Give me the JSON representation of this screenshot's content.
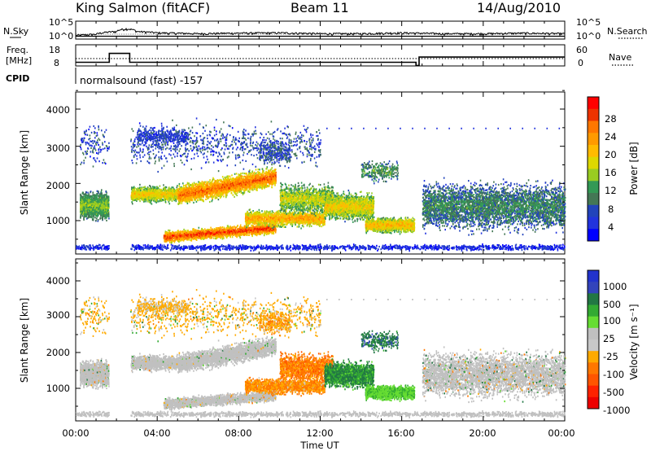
{
  "header": {
    "station": "King Salmon (fitACF)",
    "beam": "Beam 11",
    "date": "14/Aug/2010"
  },
  "noise_panel": {
    "left_label": "N.Sky",
    "left_ticks": [
      "10^5",
      "10^0"
    ],
    "right_ticks": [
      "10^5",
      "10^0"
    ],
    "right_label": "N.Search"
  },
  "freq_panel": {
    "left_label_1": "Freq.",
    "left_label_2": "[MHz]",
    "left_ticks": [
      "18",
      "8"
    ],
    "right_ticks": [
      "60",
      "0"
    ],
    "right_label": "Nave"
  },
  "cpid": {
    "label": "CPID",
    "program": "normalsound (fast) -157"
  },
  "power_panel": {
    "ylabel": "Slant Range [km]",
    "yticks": [
      "4000",
      "3000",
      "2000",
      "1000"
    ],
    "colorbar_label": "Power [dB]",
    "colorbar_ticks": [
      "28",
      "24",
      "20",
      "16",
      "12",
      "8",
      "4"
    ],
    "colorbar_colors": [
      "#ff0000",
      "#ee3300",
      "#ff7700",
      "#ff9a00",
      "#ffbb00",
      "#ddd800",
      "#99cc22",
      "#339955",
      "#447755",
      "#2244bb",
      "#2233dd",
      "#0000ff"
    ]
  },
  "velocity_panel": {
    "ylabel": "Slant Range [km]",
    "yticks": [
      "4000",
      "3000",
      "2000",
      "1000"
    ],
    "colorbar_label": "Velocity [m s⁻¹]",
    "colorbar_ticks": [
      "1000",
      "500",
      "100",
      "25",
      "-25",
      "-100",
      "-500",
      "-1000"
    ],
    "colorbar_colors": [
      "#2233cc",
      "#3344bb",
      "#227744",
      "#33aa33",
      "#66dd33",
      "#c0c0c0",
      "#c8c8c8",
      "#ffaa00",
      "#ff7700",
      "#ff5500",
      "#ff2200",
      "#ee0000"
    ]
  },
  "time_axis": {
    "label": "Time UT",
    "ticks": [
      "00:00",
      "04:00",
      "08:00",
      "12:00",
      "16:00",
      "20:00",
      "00:00"
    ]
  },
  "chart_data": [
    {
      "type": "line",
      "title": "N.Sky / N.Search",
      "x_unit": "hours UT",
      "xlim": [
        0,
        24
      ],
      "yscale": "log",
      "series": [
        {
          "name": "N.Sky",
          "x": [
            0,
            1,
            2,
            2.5,
            3,
            4,
            6,
            8,
            10,
            12,
            14,
            16,
            18,
            20,
            22,
            24
          ],
          "y": [
            1,
            3,
            30,
            300,
            30,
            10,
            5,
            8,
            10,
            5,
            5,
            10,
            5,
            5,
            8,
            5
          ]
        }
      ]
    },
    {
      "type": "line",
      "title": "Freq / Nave",
      "x_unit": "hours UT",
      "xlim": [
        0,
        24
      ],
      "series": [
        {
          "name": "Freq. [MHz]",
          "x": [
            0,
            1.65,
            1.65,
            2.65,
            2.65,
            16.7,
            16.7,
            16.85,
            16.85,
            24
          ],
          "y": [
            10.8,
            10.8,
            17.6,
            17.6,
            10.8,
            10.8,
            8.4,
            8.4,
            14.8,
            14.8
          ]
        },
        {
          "name": "Nave",
          "x": [
            0,
            24
          ],
          "y": [
            34,
            34
          ]
        }
      ]
    },
    {
      "type": "heatmap",
      "title": "Power [dB]",
      "x_unit": "hours UT",
      "y_unit": "km",
      "xlim": [
        0,
        24
      ],
      "ylim": [
        180,
        4600
      ],
      "color_range": [
        0,
        30
      ],
      "features": [
        {
          "x": [
            0.3,
            1.6
          ],
          "y": [
            900,
            1900
          ],
          "value": 12
        },
        {
          "x": [
            2.7,
            7.5
          ],
          "y": [
            1500,
            2000
          ],
          "value": 18
        },
        {
          "x": [
            5,
            9.5
          ],
          "y": [
            1800,
            2600
          ],
          "value": 24
        },
        {
          "x": [
            4.5,
            9.5
          ],
          "y": [
            500,
            900
          ],
          "value": 26
        },
        {
          "x": [
            8.5,
            12
          ],
          "y": [
            800,
            1300
          ],
          "value": 20
        },
        {
          "x": [
            11,
            16.5
          ],
          "y": [
            600,
            1500
          ],
          "value": 14
        },
        {
          "x": [
            17,
            24
          ],
          "y": [
            500,
            2200
          ],
          "value": 6
        }
      ]
    },
    {
      "type": "heatmap",
      "title": "Velocity [m s⁻¹]",
      "x_unit": "hours UT",
      "y_unit": "km",
      "xlim": [
        0,
        24
      ],
      "ylim": [
        180,
        4600
      ],
      "color_range": [
        -1000,
        1000
      ],
      "features": [
        {
          "x": [
            0.2,
            1.6
          ],
          "y": [
            1000,
            2000
          ],
          "value": 0
        },
        {
          "x": [
            2.7,
            10
          ],
          "y": [
            1500,
            2100
          ],
          "value": 0
        },
        {
          "x": [
            6,
            10
          ],
          "y": [
            500,
            800
          ],
          "value": -20
        },
        {
          "x": [
            10,
            12.5
          ],
          "y": [
            900,
            1800
          ],
          "value": -150
        },
        {
          "x": [
            12.5,
            14.5
          ],
          "y": [
            900,
            1800
          ],
          "value": 200
        },
        {
          "x": [
            14.5,
            16.5
          ],
          "y": [
            800,
            1200
          ],
          "value": 80
        },
        {
          "x": [
            17,
            24
          ],
          "y": [
            800,
            2000
          ],
          "value": 0
        }
      ]
    }
  ]
}
